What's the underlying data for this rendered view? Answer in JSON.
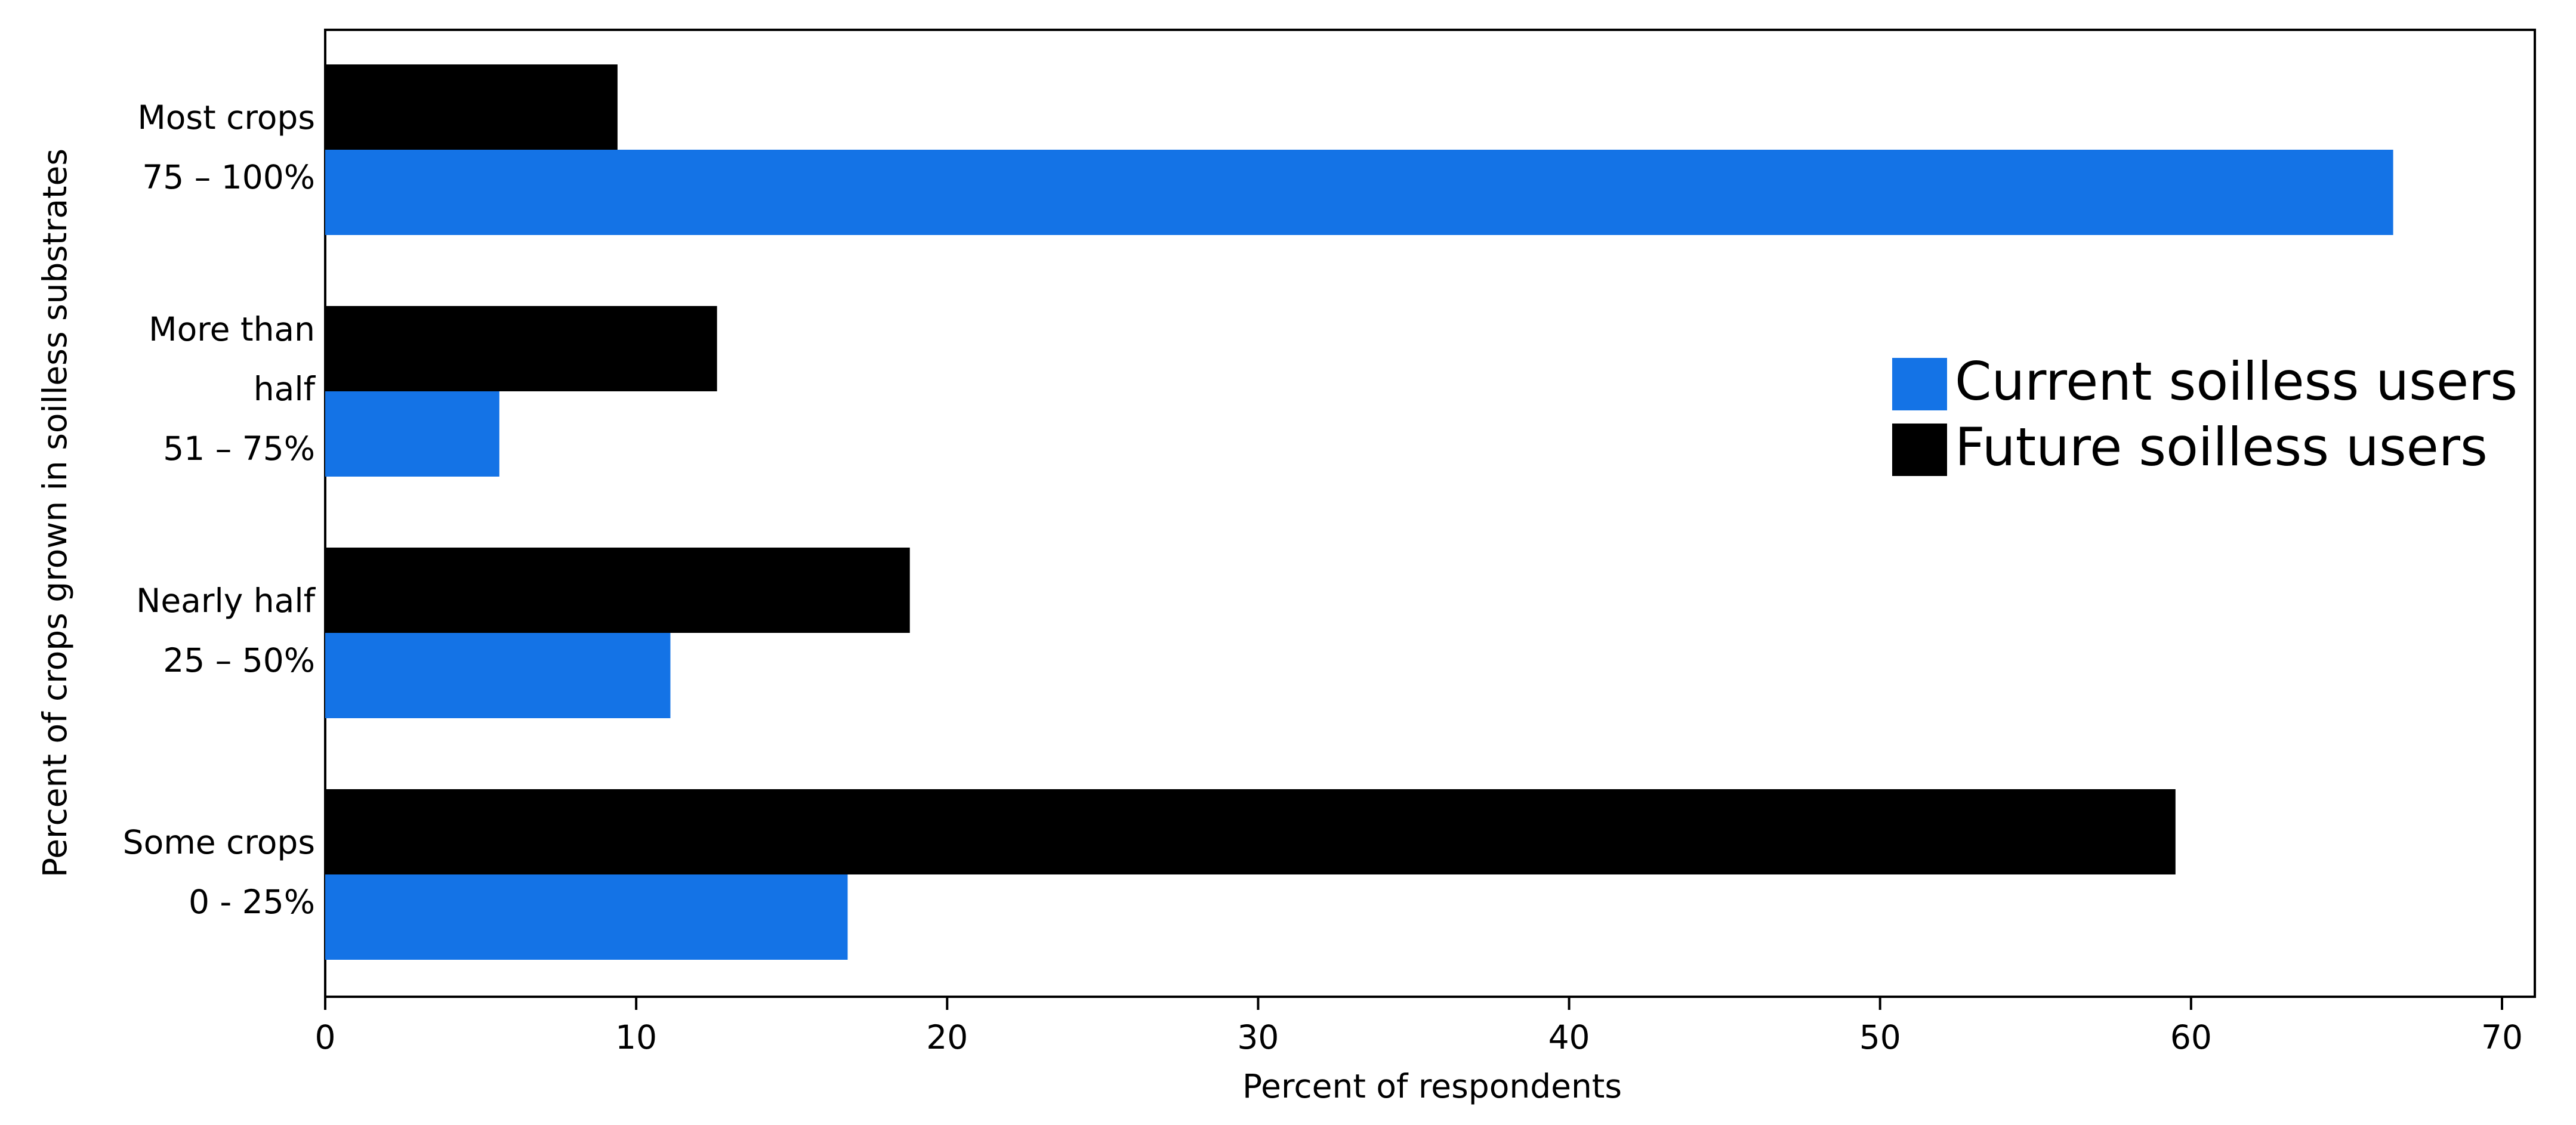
{
  "chart_data": {
    "type": "bar",
    "orientation": "horizontal",
    "y_label": "Percent of crops grown in soilless substrates",
    "x_label": "Percent of respondents",
    "categories": [
      [
        "Most crops",
        "75 – 100%"
      ],
      [
        "More than",
        "half",
        "51 – 75%"
      ],
      [
        "Nearly half",
        "25 – 50%"
      ],
      [
        "Some crops",
        "0 - 25%"
      ]
    ],
    "series": [
      {
        "name": "Current soilless users",
        "color": "#1473e6",
        "values": [
          66.5,
          5.6,
          11.1,
          16.8
        ]
      },
      {
        "name": "Future soilless users",
        "color": "#000000",
        "values": [
          9.4,
          12.6,
          18.8,
          59.5
        ]
      }
    ],
    "xlim": [
      0,
      70
    ],
    "xticks": [
      0,
      10,
      20,
      30,
      40,
      50,
      60,
      70
    ],
    "legend": "right",
    "grid": false
  }
}
